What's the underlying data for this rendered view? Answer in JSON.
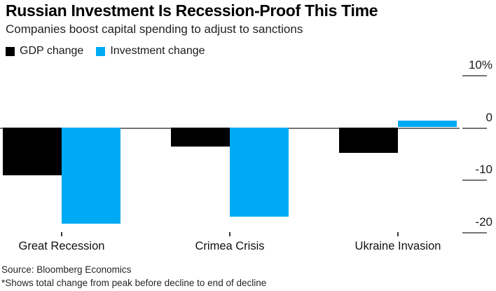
{
  "header": {
    "title": "Russian Investment Is Recession-Proof This Time",
    "subtitle": "Companies boost capital spending to adjust to sanctions"
  },
  "legend": [
    {
      "label": "GDP change",
      "color": "#000000"
    },
    {
      "label": "Investment change",
      "color": "#00a9f4"
    }
  ],
  "chart_data": {
    "type": "bar",
    "categories": [
      "Great Recession",
      "Crimea Crisis",
      "Ukraine Invasion"
    ],
    "series": [
      {
        "name": "GDP change",
        "color": "#000000",
        "values": [
          -9.1,
          -3.6,
          -4.8
        ]
      },
      {
        "name": "Investment change",
        "color": "#00a9f4",
        "values": [
          -18.3,
          -17.0,
          1.3
        ]
      }
    ],
    "title": "Russian Investment Is Recession-Proof This Time",
    "subtitle": "Companies boost capital spending to adjust to sanctions",
    "xlabel": "",
    "ylabel": "",
    "unit": "%",
    "yticks": [
      10,
      0,
      -10,
      -20
    ],
    "ytick_labels": [
      "10%",
      "0",
      "-10",
      "-20"
    ],
    "ylim": [
      -21.5,
      11
    ],
    "grid": false,
    "legend_position": "top-left",
    "axis_color": "#757575",
    "tick_label_color": "#1a1a1a"
  },
  "footer": {
    "source": "Source: Bloomberg Economics",
    "note": "*Shows total change from peak before decline to end of decline"
  }
}
